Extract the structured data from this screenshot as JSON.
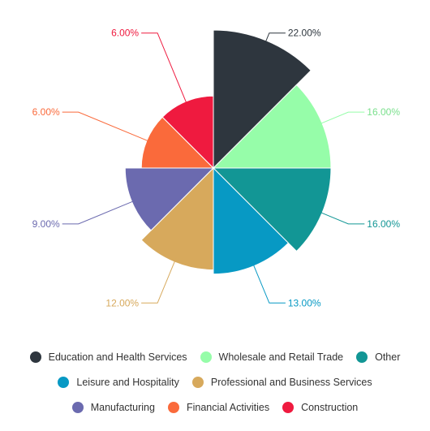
{
  "chart_data": {
    "type": "pie",
    "variant": "polar-area",
    "slices": [
      {
        "label": "Education and Health Services",
        "value": 22.0,
        "display": "22.00%",
        "color": "#2e363e"
      },
      {
        "label": "Wholesale and Retail Trade",
        "value": 16.0,
        "display": "16.00%",
        "color": "#96fda9"
      },
      {
        "label": "Other",
        "value": 16.0,
        "display": "16.00%",
        "color": "#129695"
      },
      {
        "label": "Leisure and Hospitality",
        "value": 13.0,
        "display": "13.00%",
        "color": "#0799c4"
      },
      {
        "label": "Professional and Business Services",
        "value": 12.0,
        "display": "12.00%",
        "color": "#d7a95c"
      },
      {
        "label": "Manufacturing",
        "value": 9.0,
        "display": "9.00%",
        "color": "#6b6aaf"
      },
      {
        "label": "Financial Activities",
        "value": 6.0,
        "display": "6.00%",
        "color": "#fa6a3b"
      },
      {
        "label": "Construction",
        "value": 6.0,
        "display": "6.00%",
        "color": "#ef1a3f"
      }
    ],
    "legend_position": "bottom"
  }
}
